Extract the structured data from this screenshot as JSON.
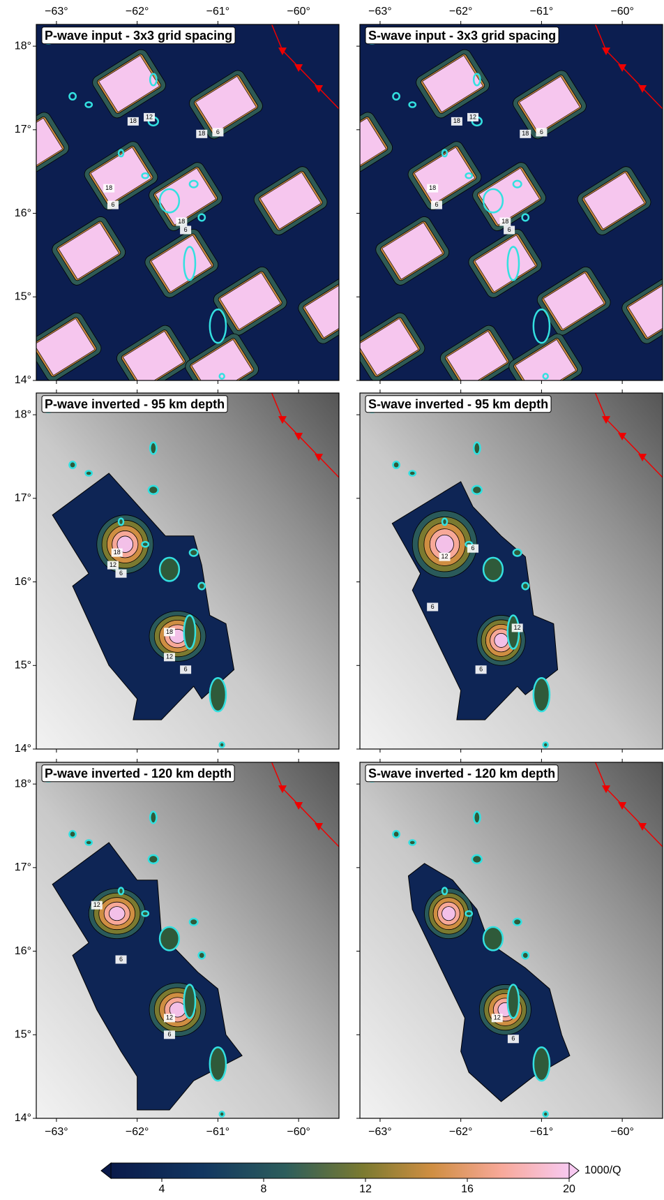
{
  "map": {
    "xlim": [
      -63.25,
      -59.5
    ],
    "ylim": [
      14,
      18.26
    ],
    "xticks": [
      {
        "value": -63,
        "label": "−63°"
      },
      {
        "value": -62,
        "label": "−62°"
      },
      {
        "value": -61,
        "label": "−61°"
      },
      {
        "value": -60,
        "label": "−60°"
      }
    ],
    "yticks": [
      {
        "value": 14,
        "label": "14°"
      },
      {
        "value": 15,
        "label": "15°"
      },
      {
        "value": 16,
        "label": "16°"
      },
      {
        "value": 17,
        "label": "17°"
      },
      {
        "value": 18,
        "label": "18°"
      }
    ]
  },
  "panels": [
    {
      "title": "P-wave input - 3x3 grid spacing",
      "contour_labels": [
        18,
        12,
        18,
        6,
        18,
        6,
        18,
        6
      ]
    },
    {
      "title": "S-wave input - 3x3 grid spacing",
      "contour_labels": [
        18,
        12,
        18,
        6,
        18,
        6,
        18,
        6
      ]
    },
    {
      "title": "P-wave inverted - 95 km depth",
      "contour_labels": [
        18,
        12,
        6,
        18,
        12,
        6
      ]
    },
    {
      "title": "S-wave inverted - 95 km depth",
      "contour_labels": [
        12,
        6,
        6,
        12,
        6
      ]
    },
    {
      "title": "P-wave inverted - 120 km depth",
      "contour_labels": [
        12,
        6,
        12,
        6
      ]
    },
    {
      "title": "S-wave inverted - 120 km depth",
      "contour_labels": [
        12,
        6
      ]
    }
  ],
  "colorbar": {
    "label": "1000/Q",
    "lim": [
      2,
      20
    ],
    "ticks": [
      4,
      8,
      12,
      16,
      20
    ]
  }
}
